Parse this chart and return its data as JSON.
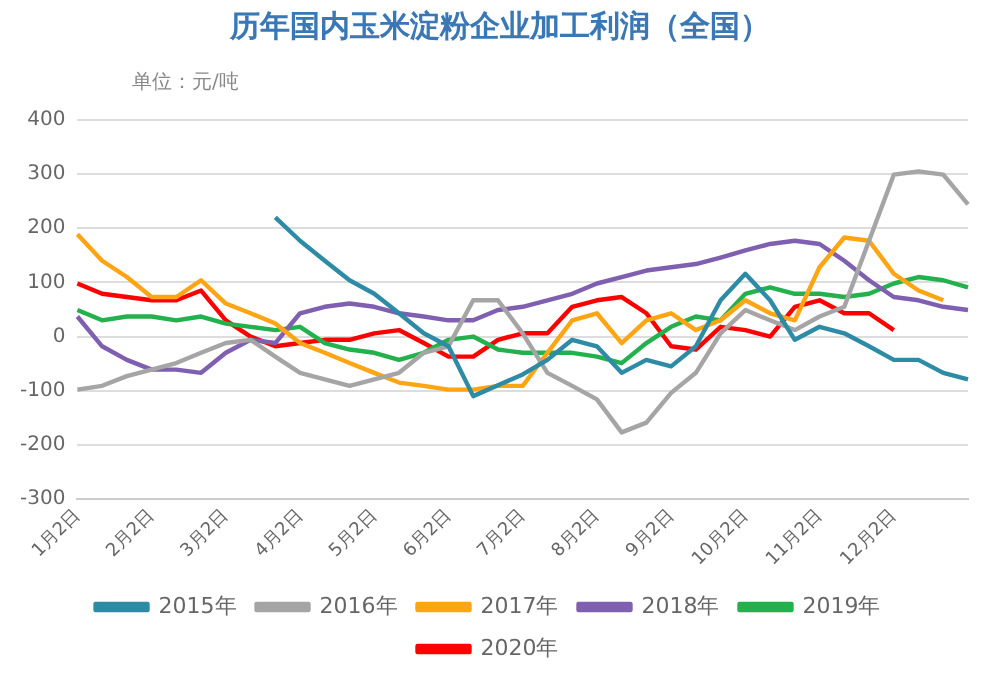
{
  "chart_data": {
    "type": "line",
    "title": "历年国内玉米淀粉企业加工利润（全国）",
    "subtitle": "单位：元/吨",
    "categories": [
      "1月2日",
      null,
      null,
      "2月2日",
      null,
      null,
      "3月2日",
      null,
      null,
      "4月2日",
      null,
      null,
      "5月2日",
      null,
      null,
      "6月2日",
      null,
      null,
      "7月2日",
      null,
      null,
      "8月2日",
      null,
      null,
      "9月2日",
      null,
      null,
      "10月2日",
      null,
      null,
      "11月2日",
      null,
      null,
      "12月2日",
      null,
      null,
      null
    ],
    "series": [
      {
        "name": "2015年",
        "color": "#2e8ba6",
        "values": [
          null,
          null,
          null,
          null,
          null,
          null,
          null,
          null,
          220,
          177,
          140,
          104,
          79,
          43,
          6,
          -18,
          -110,
          -90,
          -70,
          -43,
          -6,
          -18,
          -67,
          -43,
          -55,
          -18,
          67,
          116,
          67,
          -6,
          18,
          6,
          -18,
          -43,
          -43,
          -67,
          -79
        ]
      },
      {
        "name": "2016年",
        "color": "#a5a5a5",
        "values": [
          -98,
          -91,
          -73,
          -61,
          -49,
          -30,
          -12,
          -6,
          -37,
          -67,
          -79,
          -91,
          -79,
          -67,
          -30,
          -18,
          67,
          67,
          6,
          -67,
          -91,
          -116,
          -177,
          -159,
          -104,
          -67,
          6,
          49,
          30,
          12,
          37,
          55,
          177,
          299,
          305,
          299,
          244
        ]
      },
      {
        "name": "2017年",
        "color": "#ffa514",
        "values": [
          189,
          140,
          110,
          73,
          73,
          104,
          61,
          43,
          24,
          -12,
          -30,
          -49,
          -67,
          -85,
          -91,
          -98,
          -98,
          -91,
          -91,
          -30,
          30,
          43,
          -12,
          30,
          43,
          12,
          30,
          67,
          43,
          30,
          128,
          183,
          177,
          116,
          85,
          67,
          null
        ]
      },
      {
        "name": "2018年",
        "color": "#7f5fb0",
        "values": [
          37,
          -18,
          -43,
          -61,
          -61,
          -67,
          -30,
          -6,
          -12,
          43,
          55,
          61,
          55,
          43,
          37,
          30,
          30,
          49,
          55,
          67,
          79,
          98,
          110,
          122,
          128,
          134,
          146,
          159,
          171,
          177,
          171,
          140,
          104,
          73,
          67,
          55,
          49
        ]
      },
      {
        "name": "2019年",
        "color": "#22b14c",
        "values": [
          49,
          30,
          37,
          37,
          30,
          37,
          24,
          18,
          12,
          18,
          -12,
          -24,
          -30,
          -43,
          -30,
          -6,
          0,
          -24,
          -30,
          -30,
          -30,
          -37,
          -49,
          -12,
          18,
          37,
          30,
          79,
          91,
          79,
          79,
          73,
          79,
          98,
          110,
          104,
          91
        ]
      },
      {
        "name": "2020年",
        "color": "#ff0000",
        "values": [
          98,
          79,
          73,
          67,
          67,
          85,
          30,
          0,
          -18,
          -12,
          -6,
          -6,
          6,
          12,
          -12,
          -37,
          -37,
          -6,
          6,
          6,
          55,
          67,
          73,
          43,
          -18,
          -24,
          18,
          12,
          0,
          55,
          67,
          43,
          43,
          12,
          null,
          null,
          null
        ]
      }
    ],
    "ylim": [
      -300,
      400
    ],
    "yticks": [
      -300,
      -200,
      -100,
      0,
      100,
      200,
      300,
      400
    ],
    "grid": "y",
    "legend": "bottom",
    "marker": "none",
    "line_style": "solid"
  }
}
